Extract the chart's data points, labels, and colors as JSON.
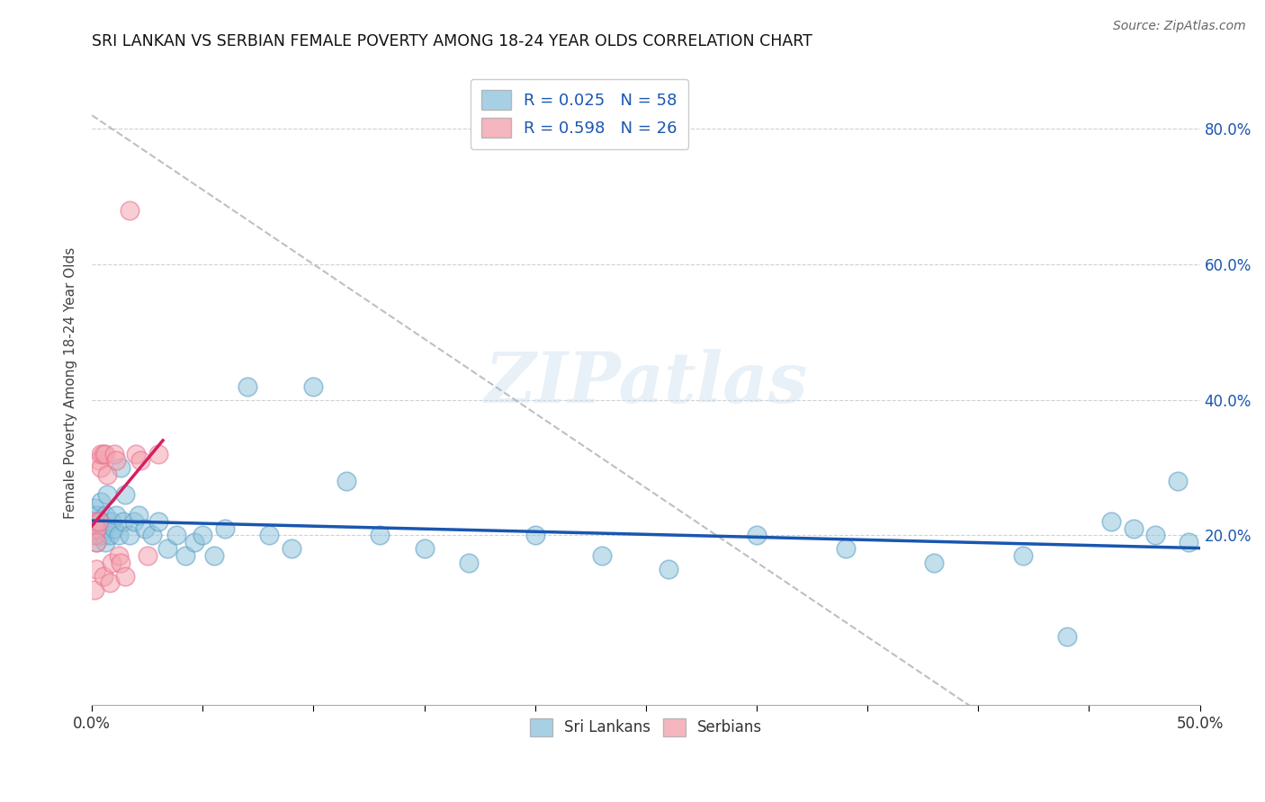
{
  "title": "SRI LANKAN VS SERBIAN FEMALE POVERTY AMONG 18-24 YEAR OLDS CORRELATION CHART",
  "source": "Source: ZipAtlas.com",
  "ylabel": "Female Poverty Among 18-24 Year Olds",
  "xlim": [
    0.0,
    0.5
  ],
  "ylim": [
    -0.05,
    0.9
  ],
  "color_sri": "#92c5de",
  "color_serbian": "#f4a4b0",
  "color_sri_edge": "#5a9fc4",
  "color_serbian_edge": "#e87090",
  "color_sri_line": "#1a56b0",
  "color_serbian_line": "#d42060",
  "watermark": "ZIPatlas",
  "background_color": "#ffffff",
  "grid_color": "#cccccc",
  "sri_x": [
    0.001,
    0.001,
    0.001,
    0.002,
    0.002,
    0.002,
    0.003,
    0.003,
    0.003,
    0.004,
    0.004,
    0.005,
    0.005,
    0.006,
    0.006,
    0.007,
    0.008,
    0.009,
    0.01,
    0.011,
    0.012,
    0.013,
    0.014,
    0.015,
    0.017,
    0.019,
    0.021,
    0.024,
    0.027,
    0.03,
    0.034,
    0.038,
    0.042,
    0.046,
    0.05,
    0.055,
    0.06,
    0.07,
    0.08,
    0.09,
    0.1,
    0.115,
    0.13,
    0.15,
    0.17,
    0.2,
    0.23,
    0.26,
    0.3,
    0.34,
    0.38,
    0.42,
    0.44,
    0.46,
    0.47,
    0.48,
    0.49,
    0.495
  ],
  "sri_y": [
    0.22,
    0.24,
    0.2,
    0.21,
    0.23,
    0.19,
    0.2,
    0.22,
    0.2,
    0.22,
    0.25,
    0.21,
    0.2,
    0.23,
    0.19,
    0.26,
    0.2,
    0.22,
    0.21,
    0.23,
    0.2,
    0.3,
    0.22,
    0.26,
    0.2,
    0.22,
    0.23,
    0.21,
    0.2,
    0.22,
    0.18,
    0.2,
    0.17,
    0.19,
    0.2,
    0.17,
    0.21,
    0.42,
    0.2,
    0.18,
    0.42,
    0.28,
    0.2,
    0.18,
    0.16,
    0.2,
    0.17,
    0.15,
    0.2,
    0.18,
    0.16,
    0.17,
    0.05,
    0.22,
    0.21,
    0.2,
    0.28,
    0.19
  ],
  "serbian_x": [
    0.001,
    0.001,
    0.001,
    0.002,
    0.002,
    0.002,
    0.003,
    0.003,
    0.004,
    0.004,
    0.005,
    0.005,
    0.006,
    0.007,
    0.008,
    0.009,
    0.01,
    0.011,
    0.012,
    0.013,
    0.015,
    0.017,
    0.02,
    0.022,
    0.025,
    0.03
  ],
  "serbian_y": [
    0.2,
    0.22,
    0.12,
    0.21,
    0.19,
    0.15,
    0.22,
    0.31,
    0.3,
    0.32,
    0.32,
    0.14,
    0.32,
    0.29,
    0.13,
    0.16,
    0.32,
    0.31,
    0.17,
    0.16,
    0.14,
    0.68,
    0.32,
    0.31,
    0.17,
    0.32
  ]
}
